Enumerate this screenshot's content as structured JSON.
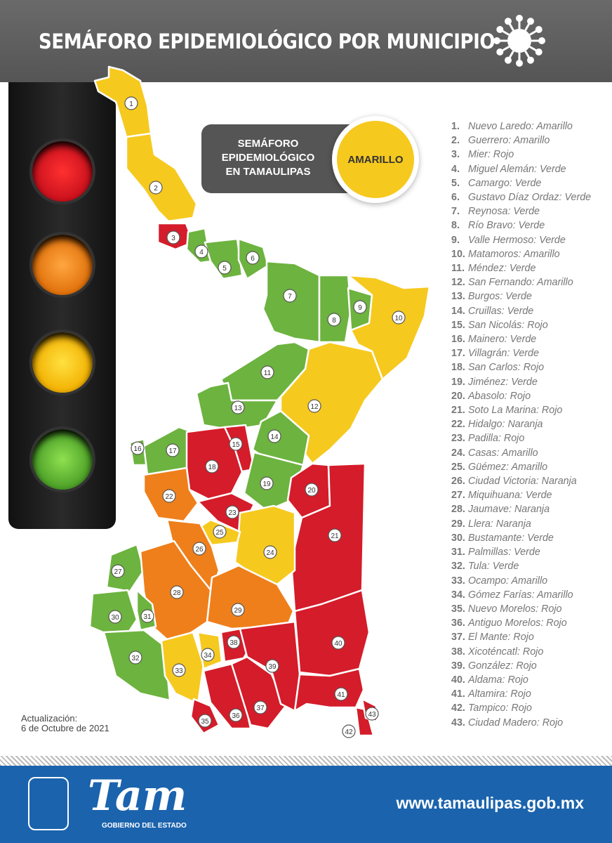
{
  "header": {
    "title": "SEMÁFORO EPIDEMIOLÓGICO POR MUNICIPIO",
    "icon": "virus-icon"
  },
  "state_badge": {
    "label": "SEMÁFORO EPIDEMIOLÓGICO EN TAMAULIPAS",
    "status": "AMARILLO",
    "color": "#f6c91f"
  },
  "colors": {
    "Rojo": "#d41c2a",
    "Naranja": "#ef7f1a",
    "Amarillo": "#f6c91f",
    "Verde": "#6db33f"
  },
  "municipalities": [
    {
      "n": "1.",
      "name": "Nuevo Laredo",
      "status": "Amarillo"
    },
    {
      "n": "2.",
      "name": "Guerrero",
      "status": "Amarillo"
    },
    {
      "n": "3.",
      "name": "Mier",
      "status": "Rojo"
    },
    {
      "n": "4.",
      "name": "Miguel Alemán",
      "status": "Verde"
    },
    {
      "n": "5.",
      "name": "Camargo",
      "status": "Verde"
    },
    {
      "n": "6.",
      "name": "Gustavo Díaz Ordaz",
      "status": "Verde"
    },
    {
      "n": "7.",
      "name": "Reynosa",
      "status": "Verde"
    },
    {
      "n": "8.",
      "name": "Río Bravo",
      "status": "Verde"
    },
    {
      "n": "9.",
      "name": "Valle Hermoso",
      "status": "Verde"
    },
    {
      "n": "10.",
      "name": "Matamoros",
      "status": "Amarillo"
    },
    {
      "n": "11.",
      "name": "Méndez",
      "status": "Verde"
    },
    {
      "n": "12.",
      "name": "San Fernando",
      "status": "Amarillo"
    },
    {
      "n": "13.",
      "name": "Burgos",
      "status": "Verde"
    },
    {
      "n": "14.",
      "name": "Cruillas",
      "status": "Verde"
    },
    {
      "n": "15.",
      "name": "San Nicolás",
      "status": "Rojo"
    },
    {
      "n": "16.",
      "name": "Mainero",
      "status": "Verde"
    },
    {
      "n": "17.",
      "name": "Villagrán",
      "status": "Verde"
    },
    {
      "n": "18.",
      "name": "San Carlos",
      "status": "Rojo"
    },
    {
      "n": "19.",
      "name": "Jiménez",
      "status": "Verde"
    },
    {
      "n": "20.",
      "name": "Abasolo",
      "status": "Rojo"
    },
    {
      "n": "21.",
      "name": "Soto La Marina",
      "status": "Rojo"
    },
    {
      "n": "22.",
      "name": "Hidalgo",
      "status": "Naranja"
    },
    {
      "n": "23.",
      "name": "Padilla",
      "status": "Rojo"
    },
    {
      "n": "24.",
      "name": "Casas",
      "status": "Amarillo"
    },
    {
      "n": "25.",
      "name": "Güémez",
      "status": "Amarillo"
    },
    {
      "n": "26.",
      "name": "Ciudad Victoria",
      "status": "Naranja"
    },
    {
      "n": "27.",
      "name": "Miquihuana",
      "status": "Verde"
    },
    {
      "n": "28.",
      "name": "Jaumave",
      "status": "Naranja"
    },
    {
      "n": "29.",
      "name": "Llera",
      "status": "Naranja"
    },
    {
      "n": "30.",
      "name": "Bustamante",
      "status": "Verde"
    },
    {
      "n": "31.",
      "name": "Palmillas",
      "status": "Verde"
    },
    {
      "n": "32.",
      "name": "Tula",
      "status": "Verde"
    },
    {
      "n": "33.",
      "name": "Ocampo",
      "status": "Amarillo"
    },
    {
      "n": "34.",
      "name": "Gómez Farías",
      "status": "Amarillo"
    },
    {
      "n": "35.",
      "name": "Nuevo Morelos",
      "status": "Rojo"
    },
    {
      "n": "36.",
      "name": "Antiguo Morelos",
      "status": "Rojo"
    },
    {
      "n": "37.",
      "name": "El Mante",
      "status": "Rojo"
    },
    {
      "n": "38.",
      "name": "Xicoténcatl",
      "status": "Rojo"
    },
    {
      "n": "39.",
      "name": "González",
      "status": "Rojo"
    },
    {
      "n": "40.",
      "name": "Aldama",
      "status": "Rojo"
    },
    {
      "n": "41.",
      "name": "Altamira",
      "status": "Rojo"
    },
    {
      "n": "42.",
      "name": "Tampico",
      "status": "Rojo"
    },
    {
      "n": "43.",
      "name": "Ciudad Madero",
      "status": "Rojo"
    }
  ],
  "update": {
    "label": "Actualización:",
    "date": "6 de Octubre de 2021"
  },
  "footer": {
    "logo_text": "Tam",
    "logo_sub": "GOBIERNO DEL ESTADO",
    "url": "www.tamaulipas.gob.mx"
  }
}
